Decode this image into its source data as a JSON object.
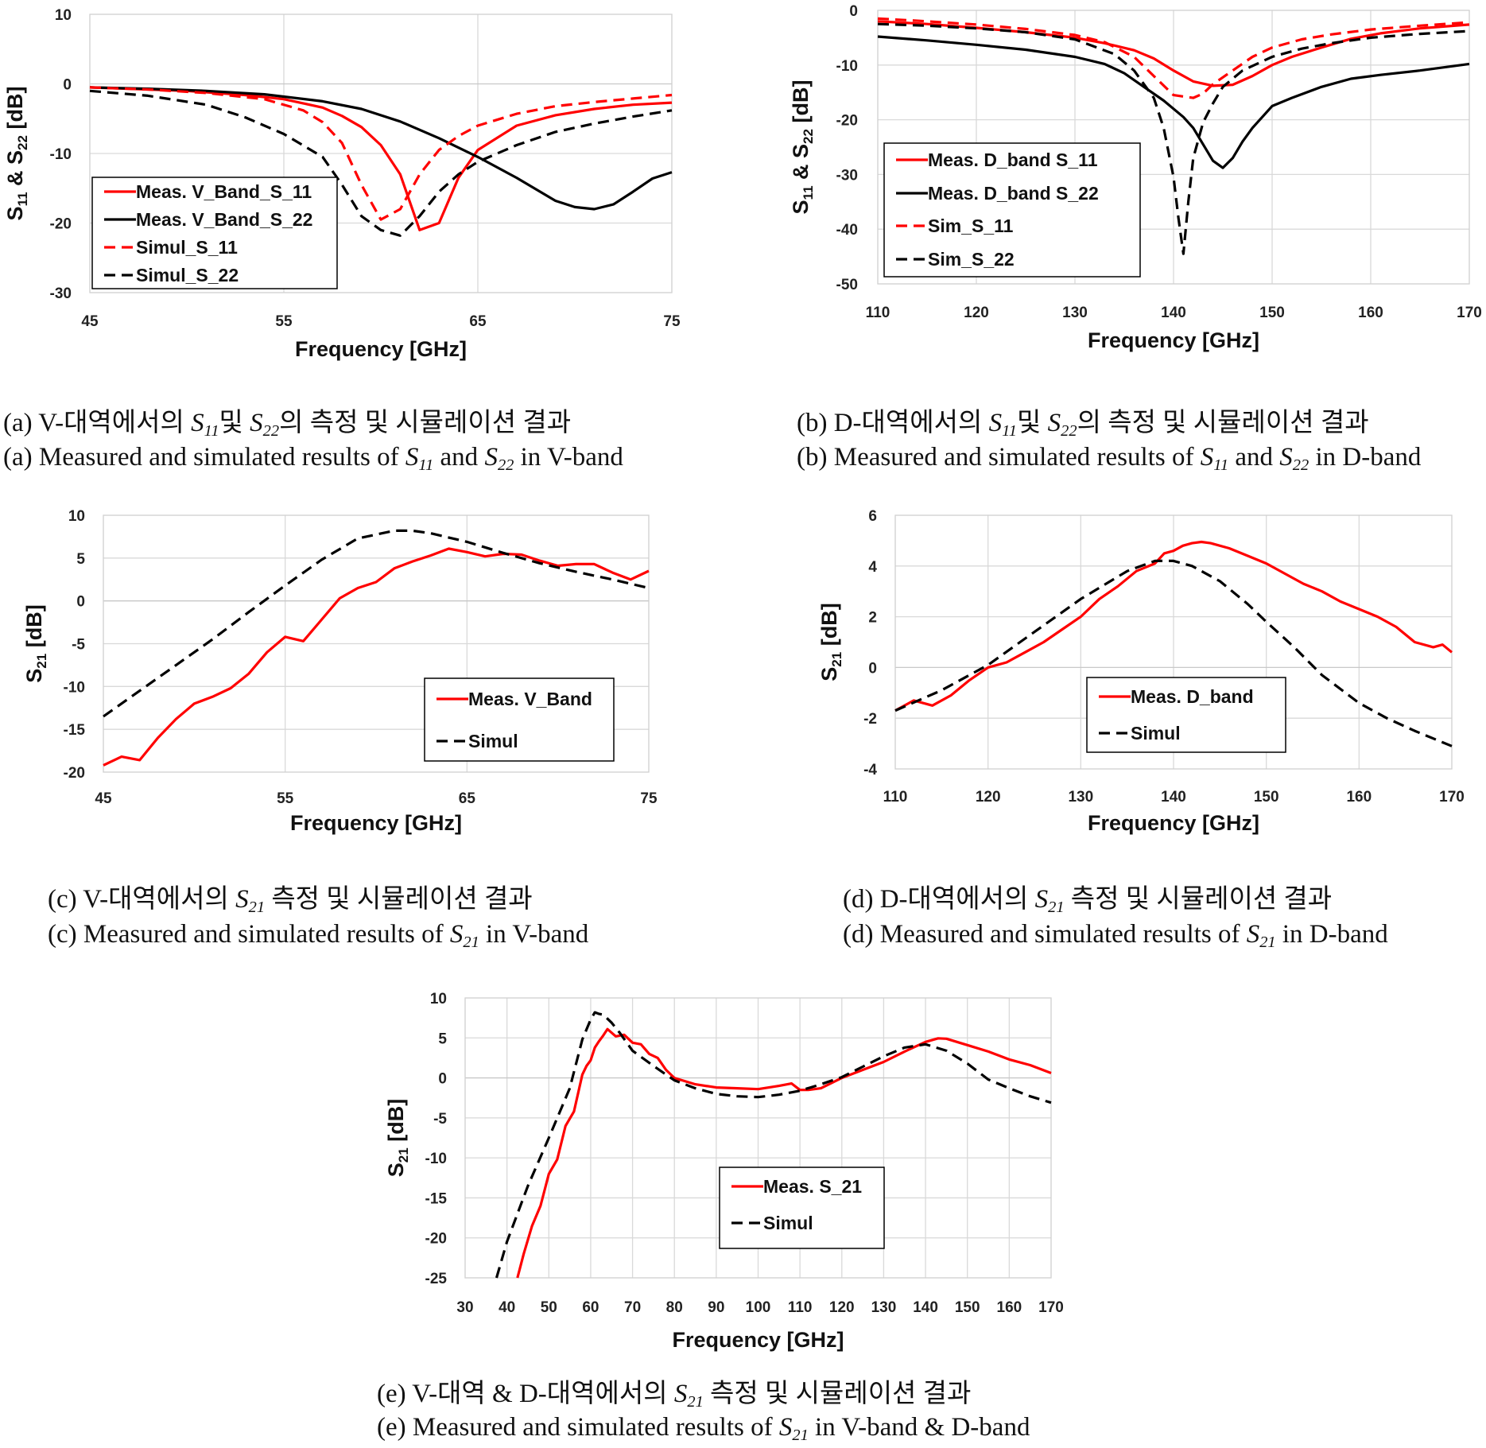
{
  "captions": [
    {
      "ko_prefix": "(a) V-대역에서의 ",
      "ko_sym1": "S",
      "ko_sub1": "11",
      "ko_mid": "및 ",
      "ko_sym2": "S",
      "ko_sub2": "22",
      "ko_suffix": "의 측정 및 시뮬레이션 결과",
      "en_prefix": "(a) Measured and simulated results of ",
      "en_sym1": "S",
      "en_sub1": "11",
      "en_mid": " and ",
      "en_sym2": "S",
      "en_sub2": "22",
      "en_suffix": " in V-band"
    },
    {
      "ko_prefix": "(b) D-대역에서의 ",
      "ko_sym1": "S",
      "ko_sub1": "11",
      "ko_mid": "및 ",
      "ko_sym2": "S",
      "ko_sub2": "22",
      "ko_suffix": "의 측정 및 시뮬레이션 결과",
      "en_prefix": "(b) Measured and simulated results of ",
      "en_sym1": "S",
      "en_sub1": "11",
      "en_mid": " and ",
      "en_sym2": "S",
      "en_sub2": "22",
      "en_suffix": " in D-band"
    },
    {
      "ko_prefix": "(c) V-대역에서의 ",
      "ko_sym": "S",
      "ko_sub": "21",
      "ko_suffix": " 측정 및 시뮬레이션 결과",
      "en_prefix": "(c) Measured and simulated results of ",
      "en_sym": "S",
      "en_sub": "21",
      "en_suffix": " in V-band"
    },
    {
      "ko_prefix": "(d) D-대역에서의 ",
      "ko_sym": "S",
      "ko_sub": "21",
      "ko_suffix": " 측정 및 시뮬레이션 결과",
      "en_prefix": "(d) Measured and simulated results of ",
      "en_sym": "S",
      "en_sub": "21",
      "en_suffix": " in D-band"
    },
    {
      "ko_prefix": "(e) V-대역 & D-대역에서의 ",
      "ko_sym": "S",
      "ko_sub": "21",
      "ko_suffix": " 측정 및 시뮬레이션 결과",
      "en_prefix": "(e) Measured and simulated results of ",
      "en_sym": "S",
      "en_sub": "21",
      "en_suffix": " in V-band & D-band"
    }
  ],
  "chart_data": [
    {
      "id": "a",
      "type": "line",
      "xlabel": "Frequency [GHz]",
      "ylabel": {
        "parts": [
          "S",
          "11",
          " & S",
          "22",
          " [dB]"
        ]
      },
      "xlim": [
        45,
        75
      ],
      "ylim": [
        -30,
        10
      ],
      "xticks": [
        45,
        55,
        65,
        75
      ],
      "yticks": [
        -30,
        -20,
        -10,
        0,
        10
      ],
      "grid": true,
      "legend_position": "bottom-left",
      "series": [
        {
          "name": "Meas. V_Band_S_11",
          "color": "#ff0000",
          "dash": "solid",
          "x": [
            45,
            47,
            50,
            53,
            55,
            57,
            58,
            59,
            60,
            61,
            61.5,
            62,
            63,
            64,
            65,
            67,
            69,
            71,
            73,
            75
          ],
          "y": [
            -0.5,
            -0.7,
            -1.0,
            -1.6,
            -2.2,
            -3.4,
            -4.6,
            -6.2,
            -8.8,
            -13,
            -17,
            -21,
            -20,
            -13.5,
            -9.5,
            -6.0,
            -4.5,
            -3.6,
            -3.0,
            -2.7
          ]
        },
        {
          "name": "Meas. V_Band_S_22",
          "color": "#000000",
          "dash": "solid",
          "x": [
            45,
            48,
            51,
            54,
            57,
            59,
            61,
            63,
            65,
            67,
            69,
            70,
            71,
            72,
            73,
            74,
            75
          ],
          "y": [
            -0.5,
            -0.7,
            -1.0,
            -1.5,
            -2.5,
            -3.6,
            -5.4,
            -7.8,
            -10.5,
            -13.5,
            -16.8,
            -17.7,
            -18.0,
            -17.3,
            -15.5,
            -13.6,
            -12.7
          ]
        },
        {
          "name": "Simul_S_11",
          "color": "#ff0000",
          "dash": "dashed",
          "x": [
            45,
            48,
            51,
            54,
            56,
            57,
            58,
            59,
            60,
            61,
            62,
            63,
            64,
            65,
            67,
            69,
            71,
            73,
            75
          ],
          "y": [
            -0.5,
            -0.8,
            -1.3,
            -2.2,
            -3.8,
            -5.5,
            -8.5,
            -14.5,
            -19.5,
            -18.0,
            -13.0,
            -9.5,
            -7.5,
            -6.0,
            -4.3,
            -3.2,
            -2.6,
            -2.1,
            -1.6
          ]
        },
        {
          "name": "Simul_S_22",
          "color": "#000000",
          "dash": "dashed",
          "x": [
            45,
            48,
            51,
            53,
            55,
            57,
            58,
            59,
            60,
            61,
            62,
            63,
            64,
            65,
            67,
            69,
            71,
            73,
            75
          ],
          "y": [
            -1.0,
            -1.7,
            -3.0,
            -4.8,
            -7.2,
            -10.5,
            -14.5,
            -19.0,
            -21.0,
            -21.8,
            -19.0,
            -15.5,
            -13.0,
            -11.2,
            -8.8,
            -6.9,
            -5.7,
            -4.7,
            -3.8
          ]
        }
      ]
    },
    {
      "id": "b",
      "type": "line",
      "xlabel": "Frequency [GHz]",
      "ylabel": {
        "parts": [
          "S",
          "11",
          " & S",
          "22",
          " [dB]"
        ]
      },
      "xlim": [
        110,
        170
      ],
      "ylim": [
        -50,
        0
      ],
      "xticks": [
        110,
        120,
        130,
        140,
        150,
        160,
        170
      ],
      "yticks": [
        -50,
        -40,
        -30,
        -20,
        -10,
        0
      ],
      "grid": true,
      "legend_position": "bottom-left",
      "series": [
        {
          "name": "Meas. D_band S_11",
          "color": "#ff0000",
          "dash": "solid",
          "x": [
            110,
            115,
            120,
            125,
            130,
            133,
            136,
            138,
            140,
            142,
            144,
            146,
            148,
            150,
            152,
            155,
            158,
            161,
            165,
            170
          ],
          "y": [
            -2.0,
            -2.5,
            -3.2,
            -4.0,
            -5.0,
            -6.0,
            -7.3,
            -8.8,
            -11.0,
            -13.0,
            -13.8,
            -13.6,
            -12.0,
            -10.0,
            -8.5,
            -6.8,
            -5.2,
            -4.2,
            -3.3,
            -2.6
          ]
        },
        {
          "name": "Meas. D_band S_22",
          "color": "#000000",
          "dash": "solid",
          "x": [
            110,
            115,
            120,
            125,
            130,
            133,
            135,
            137,
            139,
            141,
            142,
            143,
            144,
            145,
            146,
            147,
            148,
            150,
            152,
            155,
            158,
            161,
            165,
            170
          ],
          "y": [
            -4.8,
            -5.5,
            -6.3,
            -7.2,
            -8.5,
            -9.8,
            -11.5,
            -14.0,
            -16.5,
            -19.5,
            -21.5,
            -24.5,
            -27.5,
            -28.8,
            -27.0,
            -24.0,
            -21.5,
            -17.5,
            -16.0,
            -14.0,
            -12.5,
            -11.8,
            -11.0,
            -9.8
          ]
        },
        {
          "name": "Sim_S_11",
          "color": "#ff0000",
          "dash": "dashed",
          "x": [
            110,
            115,
            120,
            125,
            130,
            133,
            136,
            138,
            140,
            142,
            143,
            144,
            146,
            148,
            150,
            153,
            156,
            160,
            165,
            170
          ],
          "y": [
            -1.5,
            -2.0,
            -2.6,
            -3.4,
            -4.5,
            -5.8,
            -8.5,
            -12.0,
            -15.5,
            -16.0,
            -15.2,
            -13.5,
            -11.0,
            -8.5,
            -6.8,
            -5.3,
            -4.4,
            -3.5,
            -2.8,
            -2.2
          ]
        },
        {
          "name": "Sim_S_22",
          "color": "#000000",
          "dash": "dashed",
          "x": [
            110,
            115,
            120,
            125,
            130,
            134,
            136,
            138,
            139,
            140,
            140.5,
            141,
            141.5,
            142,
            143,
            144,
            145,
            147,
            150,
            153,
            156,
            160,
            165,
            170
          ],
          "y": [
            -2.5,
            -2.8,
            -3.3,
            -4.0,
            -5.3,
            -8.0,
            -11.0,
            -16.0,
            -21.5,
            -30.5,
            -38.0,
            -44.5,
            -35.0,
            -27.0,
            -20.5,
            -17.0,
            -14.0,
            -11.0,
            -8.5,
            -7.0,
            -6.0,
            -5.0,
            -4.3,
            -3.8
          ]
        }
      ]
    },
    {
      "id": "c",
      "type": "line",
      "xlabel": "Frequency [GHz]",
      "ylabel": {
        "parts": [
          "S",
          "21",
          " [dB]"
        ]
      },
      "xlim": [
        45,
        75
      ],
      "ylim": [
        -20,
        10
      ],
      "xticks": [
        45,
        55,
        65,
        75
      ],
      "yticks": [
        -20,
        -15,
        -10,
        -5,
        0,
        5,
        10
      ],
      "grid": true,
      "legend_position": "bottom-right",
      "series": [
        {
          "name": "Meas. V_Band",
          "color": "#ff0000",
          "dash": "solid",
          "x": [
            45,
            46,
            47,
            48,
            49,
            50,
            51,
            52,
            53,
            54,
            55,
            56,
            57,
            58,
            59,
            60,
            61,
            62,
            63,
            64,
            65,
            66,
            67,
            68,
            69,
            70,
            71,
            72,
            73,
            74,
            75
          ],
          "y": [
            -19.2,
            -18.2,
            -18.6,
            -16.0,
            -13.8,
            -12.0,
            -11.2,
            -10.2,
            -8.5,
            -6.0,
            -4.2,
            -4.7,
            -2.2,
            0.3,
            1.5,
            2.2,
            3.8,
            4.6,
            5.3,
            6.1,
            5.7,
            5.2,
            5.5,
            5.4,
            4.7,
            4.1,
            4.3,
            4.3,
            3.3,
            2.5,
            3.5
          ]
        },
        {
          "name": "Simul",
          "color": "#000000",
          "dash": "dashed",
          "x": [
            45,
            47,
            49,
            51,
            53,
            55,
            57,
            59,
            61,
            62,
            63,
            65,
            67,
            69,
            71,
            73,
            75
          ],
          "y": [
            -13.5,
            -10.5,
            -7.5,
            -4.5,
            -1.3,
            1.8,
            4.8,
            7.3,
            8.2,
            8.2,
            7.9,
            6.9,
            5.6,
            4.4,
            3.4,
            2.5,
            1.5
          ]
        }
      ]
    },
    {
      "id": "d",
      "type": "line",
      "xlabel": "Frequency [GHz]",
      "ylabel": {
        "parts": [
          "S",
          "21",
          " [dB]"
        ]
      },
      "xlim": [
        110,
        170
      ],
      "ylim": [
        -4,
        6
      ],
      "xticks": [
        110,
        120,
        130,
        140,
        150,
        160,
        170
      ],
      "yticks": [
        -4,
        -2,
        0,
        2,
        4,
        6
      ],
      "grid": true,
      "legend_position": "bottom-right",
      "series": [
        {
          "name": "Meas. D_band",
          "color": "#ff0000",
          "dash": "solid",
          "x": [
            110,
            112,
            114,
            116,
            118,
            120,
            122,
            124,
            126,
            128,
            130,
            132,
            134,
            136,
            138,
            139,
            140,
            141,
            142,
            143,
            144,
            146,
            148,
            150,
            152,
            154,
            156,
            158,
            160,
            162,
            164,
            166,
            168,
            169,
            170
          ],
          "y": [
            -1.7,
            -1.3,
            -1.5,
            -1.1,
            -0.5,
            0.0,
            0.2,
            0.6,
            1.0,
            1.5,
            2.0,
            2.7,
            3.2,
            3.8,
            4.1,
            4.5,
            4.6,
            4.8,
            4.9,
            4.95,
            4.9,
            4.7,
            4.4,
            4.1,
            3.7,
            3.3,
            3.0,
            2.6,
            2.3,
            2.0,
            1.6,
            1.0,
            0.8,
            0.9,
            0.6
          ]
        },
        {
          "name": "Simul",
          "color": "#000000",
          "dash": "dashed",
          "x": [
            110,
            115,
            120,
            125,
            130,
            135,
            138,
            140,
            142,
            145,
            148,
            150,
            153,
            156,
            160,
            163,
            166,
            170
          ],
          "y": [
            -1.7,
            -0.9,
            0.1,
            1.4,
            2.7,
            3.8,
            4.2,
            4.2,
            4.0,
            3.4,
            2.5,
            1.8,
            0.8,
            -0.3,
            -1.4,
            -2.0,
            -2.5,
            -3.1
          ]
        }
      ]
    },
    {
      "id": "e",
      "type": "line",
      "xlabel": "Frequency [GHz]",
      "ylabel": {
        "parts": [
          "S",
          "21",
          " [dB]"
        ]
      },
      "xlim": [
        30,
        170
      ],
      "ylim": [
        -25,
        10
      ],
      "xticks": [
        30,
        40,
        50,
        60,
        70,
        80,
        90,
        100,
        110,
        120,
        130,
        140,
        150,
        160,
        170
      ],
      "yticks": [
        -25,
        -20,
        -15,
        -10,
        -5,
        0,
        5,
        10
      ],
      "grid": true,
      "legend_position": "bottom-center",
      "series": [
        {
          "name": "Meas. S_21",
          "color": "#ff0000",
          "dash": "solid",
          "x": [
            42.5,
            44,
            46,
            48,
            50,
            52,
            54,
            56,
            58,
            59,
            60,
            61,
            62,
            63,
            64,
            66,
            68,
            70,
            72,
            74,
            76,
            78,
            80,
            85,
            90,
            95,
            100,
            105,
            108,
            110,
            112,
            115,
            120,
            125,
            130,
            135,
            140,
            143,
            145,
            150,
            155,
            160,
            165,
            168,
            170
          ],
          "y": [
            -25,
            -22,
            -18.5,
            -16.0,
            -12.0,
            -10.2,
            -6.0,
            -4.2,
            0.4,
            1.5,
            2.2,
            3.8,
            4.6,
            5.3,
            6.1,
            5.2,
            5.4,
            4.4,
            4.2,
            3.0,
            2.5,
            1.0,
            0.0,
            -0.8,
            -1.2,
            -1.3,
            -1.4,
            -1.0,
            -0.7,
            -1.5,
            -1.5,
            -1.3,
            0.0,
            1.0,
            2.0,
            3.3,
            4.5,
            4.95,
            4.9,
            4.1,
            3.3,
            2.3,
            1.6,
            1.0,
            0.6
          ]
        },
        {
          "name": "Simul",
          "color": "#000000",
          "dash": "dashed",
          "x": [
            37.5,
            40,
            45,
            50,
            55,
            58,
            60,
            61,
            62,
            63,
            65,
            67,
            70,
            75,
            80,
            85,
            90,
            95,
            100,
            105,
            110,
            115,
            120,
            125,
            130,
            135,
            140,
            145,
            150,
            155,
            160,
            165,
            170
          ],
          "y": [
            -25,
            -20.5,
            -13.5,
            -7.5,
            -1.3,
            4.8,
            7.3,
            8.2,
            8.0,
            7.9,
            6.9,
            5.6,
            3.4,
            1.5,
            -0.3,
            -1.3,
            -2.0,
            -2.3,
            -2.4,
            -2.1,
            -1.6,
            -0.8,
            0.1,
            1.4,
            2.7,
            3.8,
            4.2,
            3.4,
            1.8,
            -0.2,
            -1.3,
            -2.3,
            -3.1
          ]
        }
      ]
    }
  ]
}
